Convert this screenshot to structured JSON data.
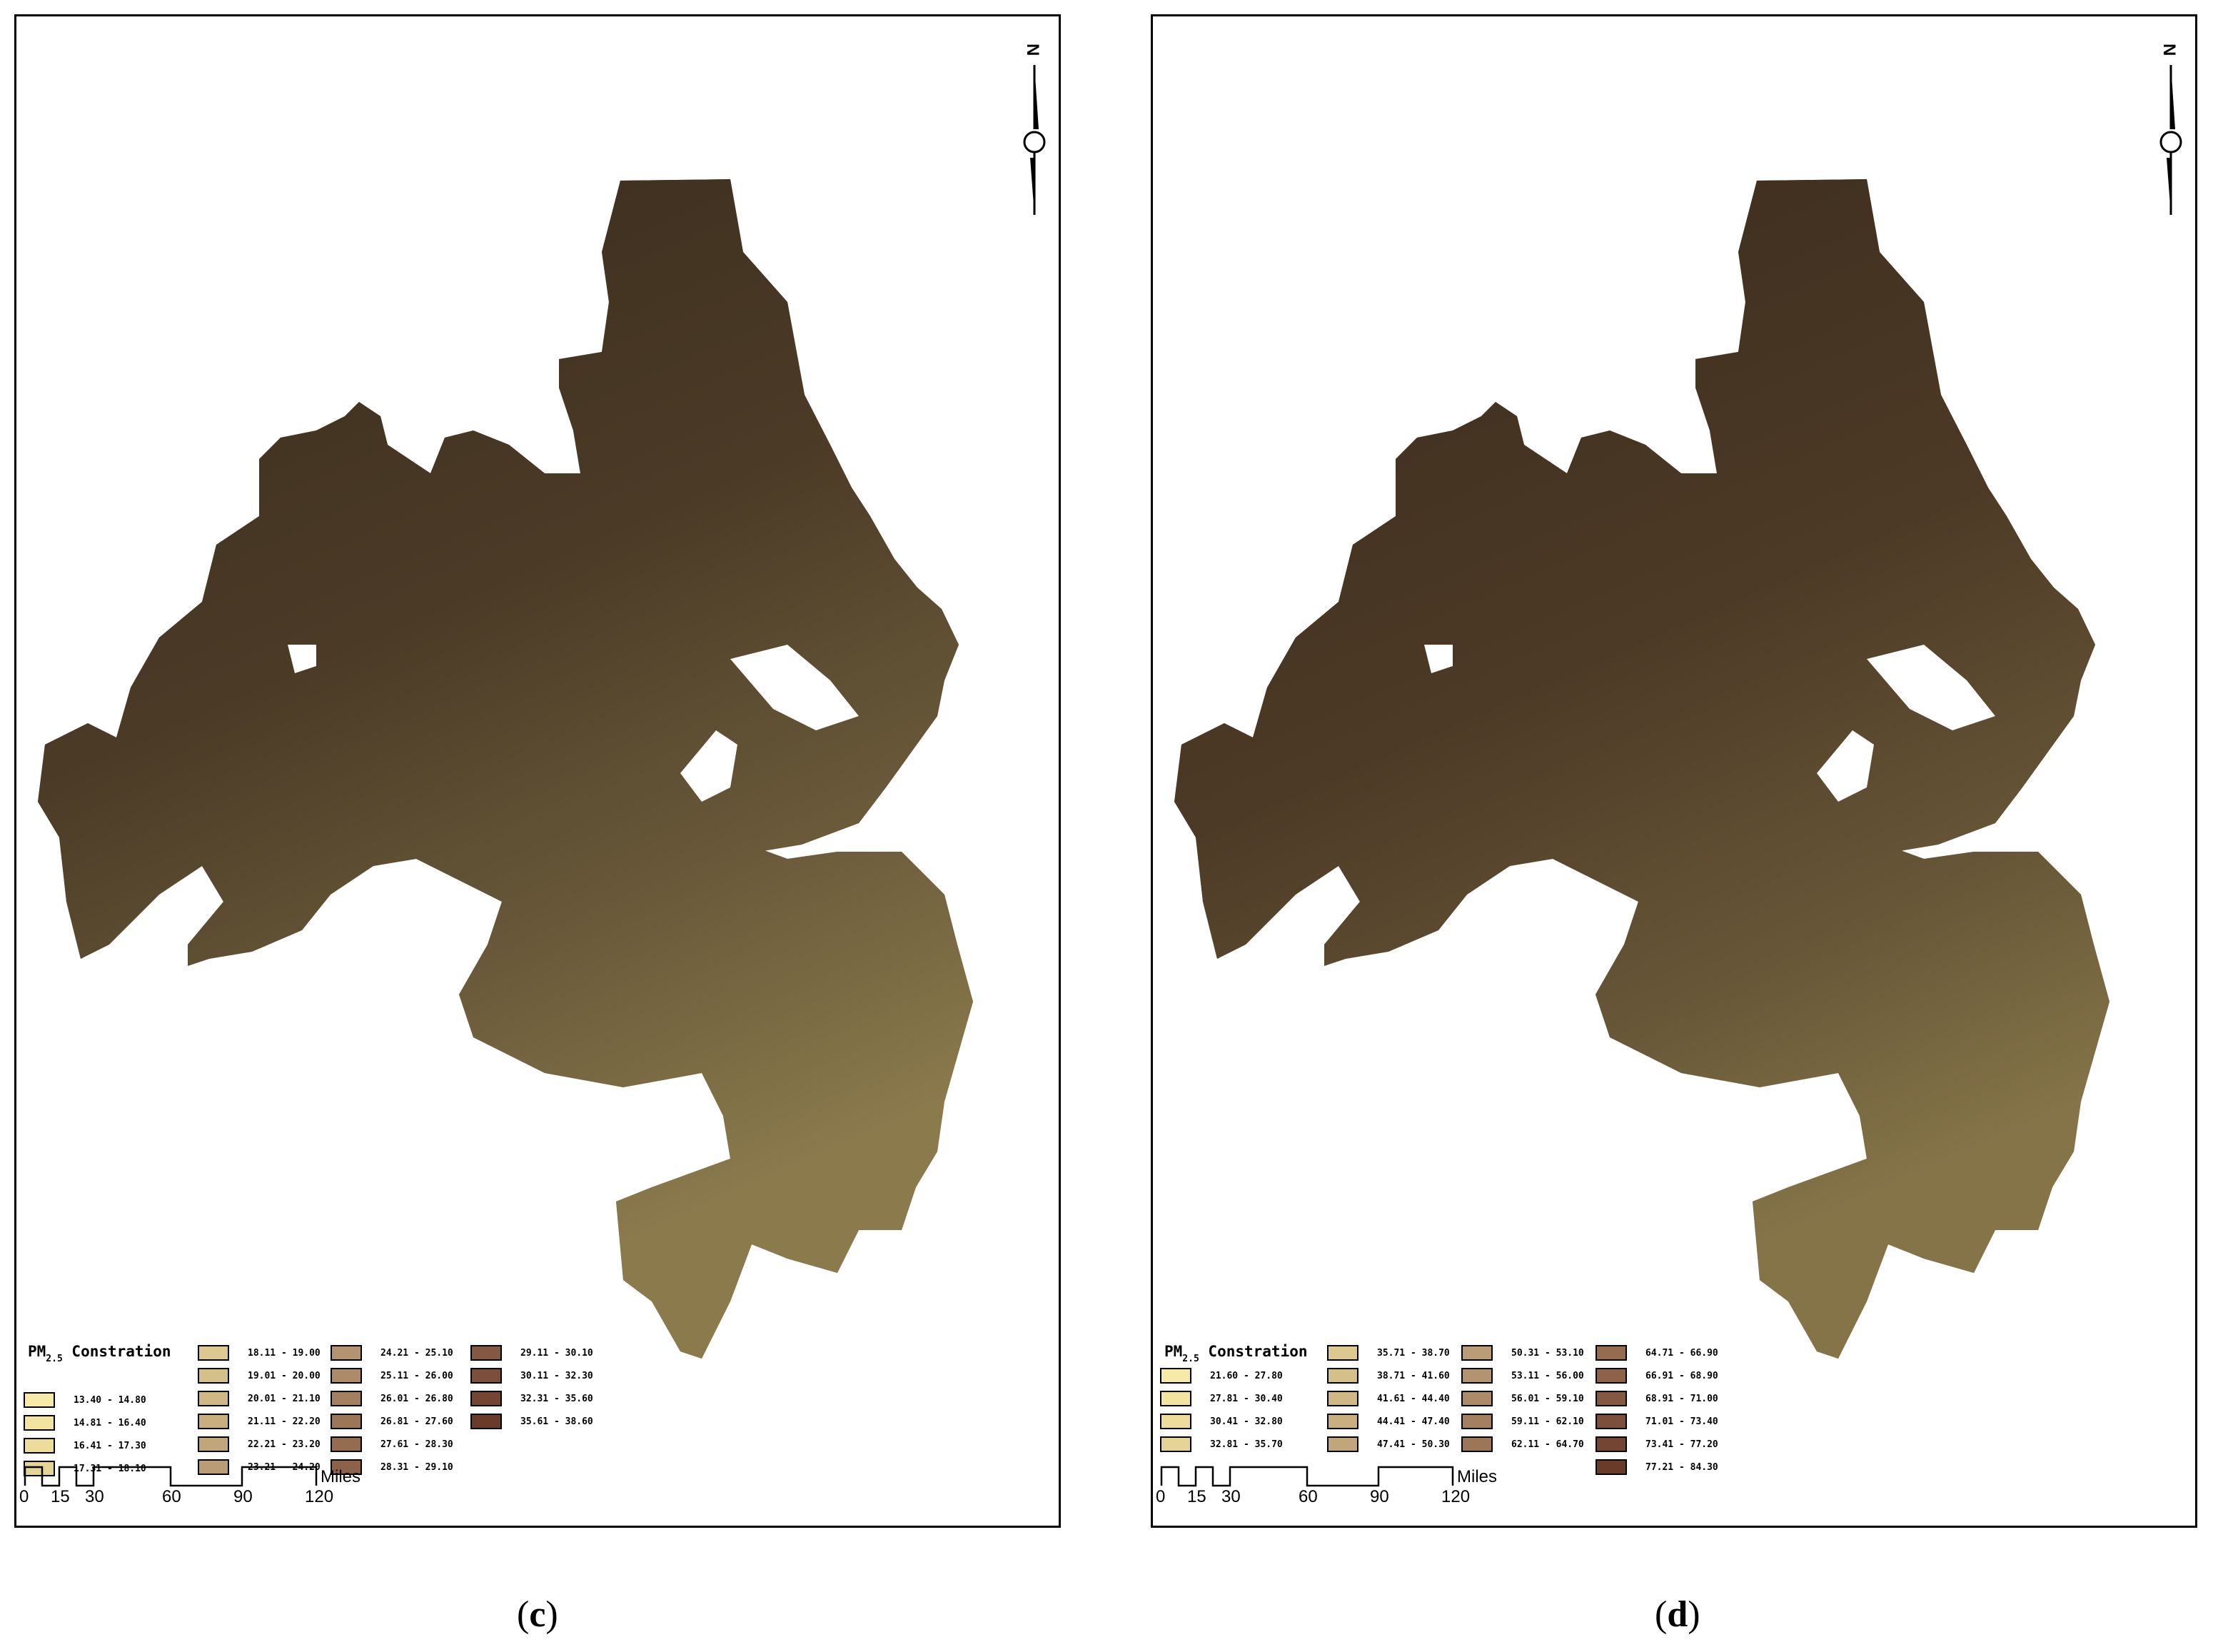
{
  "panels": [
    {
      "id": "c",
      "caption_open": "(",
      "caption_letter": "c",
      "caption_close": ")",
      "legend_title": "PM",
      "legend_title_sub": "2.5",
      "legend_title_rest": " Constration",
      "legend_columns": [
        [
          {
            "label": "13.40 - 14.80",
            "color": "#f7eaa8"
          },
          {
            "label": "14.81 - 16.40",
            "color": "#f2e3a1"
          },
          {
            "label": "16.41 - 17.30",
            "color": "#eddc9c"
          },
          {
            "label": "17.31 - 18.10",
            "color": "#e6d496"
          }
        ],
        [
          {
            "label": "18.11 - 19.00",
            "color": "#ddc98f"
          },
          {
            "label": "19.01 - 20.00",
            "color": "#d6c08a"
          },
          {
            "label": "20.01 - 21.10",
            "color": "#d0b886"
          },
          {
            "label": "21.11 - 22.20",
            "color": "#c9ae80"
          },
          {
            "label": "22.21 - 23.20",
            "color": "#c2a67b"
          },
          {
            "label": "23.21 - 24.20",
            "color": "#bb9d75"
          }
        ],
        [
          {
            "label": "24.21 - 25.10",
            "color": "#b49470"
          },
          {
            "label": "25.11 - 26.00",
            "color": "#ad8a68"
          },
          {
            "label": "26.01 - 26.80",
            "color": "#a58060"
          },
          {
            "label": "26.81 - 27.60",
            "color": "#9d7658"
          },
          {
            "label": "27.61 - 28.30",
            "color": "#956c50"
          },
          {
            "label": "28.31 - 29.10",
            "color": "#8d6249"
          }
        ],
        [
          {
            "label": "29.11 - 30.10",
            "color": "#855842"
          },
          {
            "label": "30.11 - 32.30",
            "color": "#7c4f3a"
          },
          {
            "label": "32.31 - 35.60",
            "color": "#744532"
          },
          {
            "label": "35.61 - 38.60",
            "color": "#6b3b2a"
          }
        ]
      ]
    },
    {
      "id": "d",
      "caption_open": "(",
      "caption_letter": "d",
      "caption_close": ")",
      "legend_title": "PM",
      "legend_title_sub": "2.5",
      "legend_title_rest": " Constration",
      "legend_columns": [
        [
          {
            "label": "21.60 - 27.80",
            "color": "#f7eaa8"
          },
          {
            "label": "27.81 - 30.40",
            "color": "#f2e3a1"
          },
          {
            "label": "30.41 - 32.80",
            "color": "#eddc9c"
          },
          {
            "label": "32.81 - 35.70",
            "color": "#e6d496"
          }
        ],
        [
          {
            "label": "35.71 - 38.70",
            "color": "#ddc98f"
          },
          {
            "label": "38.71 - 41.60",
            "color": "#d6c08a"
          },
          {
            "label": "41.61 - 44.40",
            "color": "#d0b886"
          },
          {
            "label": "44.41 - 47.40",
            "color": "#c9ae80"
          },
          {
            "label": "47.41 - 50.30",
            "color": "#c2a67b"
          }
        ],
        [
          {
            "label": "50.31 - 53.10",
            "color": "#bb9d75"
          },
          {
            "label": "53.11 - 56.00",
            "color": "#b49470"
          },
          {
            "label": "56.01 - 59.10",
            "color": "#ad8a68"
          },
          {
            "label": "59.11 - 62.10",
            "color": "#a58060"
          },
          {
            "label": "62.11 - 64.70",
            "color": "#9d7658"
          }
        ],
        [
          {
            "label": "64.71 - 66.90",
            "color": "#956c50"
          },
          {
            "label": "66.91 - 68.90",
            "color": "#8d6249"
          },
          {
            "label": "68.91 - 71.00",
            "color": "#855842"
          },
          {
            "label": "71.01 - 73.40",
            "color": "#7c4f3a"
          },
          {
            "label": "73.41 - 77.20",
            "color": "#744532"
          },
          {
            "label": "77.21 - 84.30",
            "color": "#6b3b2a"
          }
        ]
      ]
    }
  ],
  "scale_bar": {
    "ticks": [
      "0",
      "15",
      "30",
      "60",
      "90",
      "120"
    ],
    "unit": "Miles"
  },
  "north_arrow": {
    "letter": "N"
  },
  "map_colors": {
    "dark": "#3a2a1c",
    "light": "#8a7a4c",
    "grid": "#1a140c"
  }
}
